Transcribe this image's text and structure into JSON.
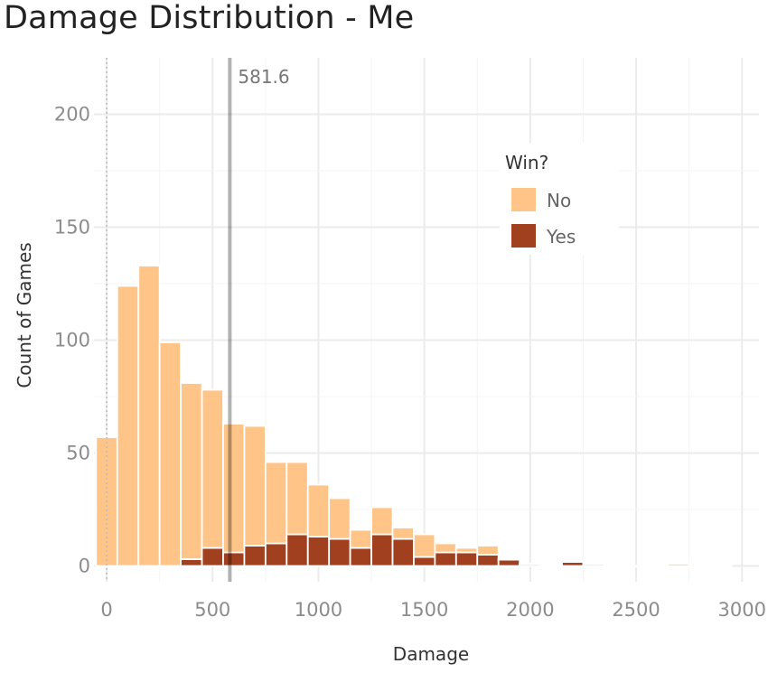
{
  "chart_data": {
    "type": "bar",
    "title": "Damage Distribution - Me",
    "xlabel": "Damage",
    "ylabel": "Count of Games",
    "xlim": [
      -60,
      3080
    ],
    "ylim": [
      -7,
      225
    ],
    "x_ticks": [
      0,
      500,
      1000,
      1500,
      2000,
      2500,
      3000
    ],
    "y_ticks": [
      0,
      50,
      100,
      150,
      200
    ],
    "grid": true,
    "bin_width": 100,
    "bin_centers": [
      0,
      100,
      200,
      300,
      400,
      500,
      600,
      700,
      800,
      900,
      1000,
      1100,
      1200,
      1300,
      1400,
      1500,
      1600,
      1700,
      1800,
      1900,
      2000,
      2100,
      2200,
      2300,
      2400,
      2500,
      2600,
      2700,
      2800,
      2900
    ],
    "stacked": true,
    "series": [
      {
        "name": "Yes",
        "color": "#a0401f",
        "values": [
          0,
          0,
          0,
          0,
          3,
          8,
          6,
          9,
          10,
          14,
          13,
          12,
          8,
          14,
          12,
          4,
          6,
          6,
          5,
          3,
          1,
          0,
          2,
          1,
          0,
          0,
          0,
          0,
          0,
          0
        ]
      },
      {
        "name": "No",
        "color": "#fec488",
        "values": [
          57,
          124,
          133,
          99,
          78,
          70,
          57,
          53,
          36,
          32,
          23,
          18,
          8,
          12,
          5,
          10,
          4,
          2,
          4,
          0,
          0,
          0,
          0,
          0,
          0,
          0,
          0,
          1,
          0,
          0
        ]
      }
    ],
    "reference_line": {
      "x": 581.6,
      "label": "581.6"
    },
    "zero_line_x": 0,
    "legend": {
      "title": "Win?",
      "placement": "top-right",
      "items": [
        "No",
        "Yes"
      ]
    }
  }
}
